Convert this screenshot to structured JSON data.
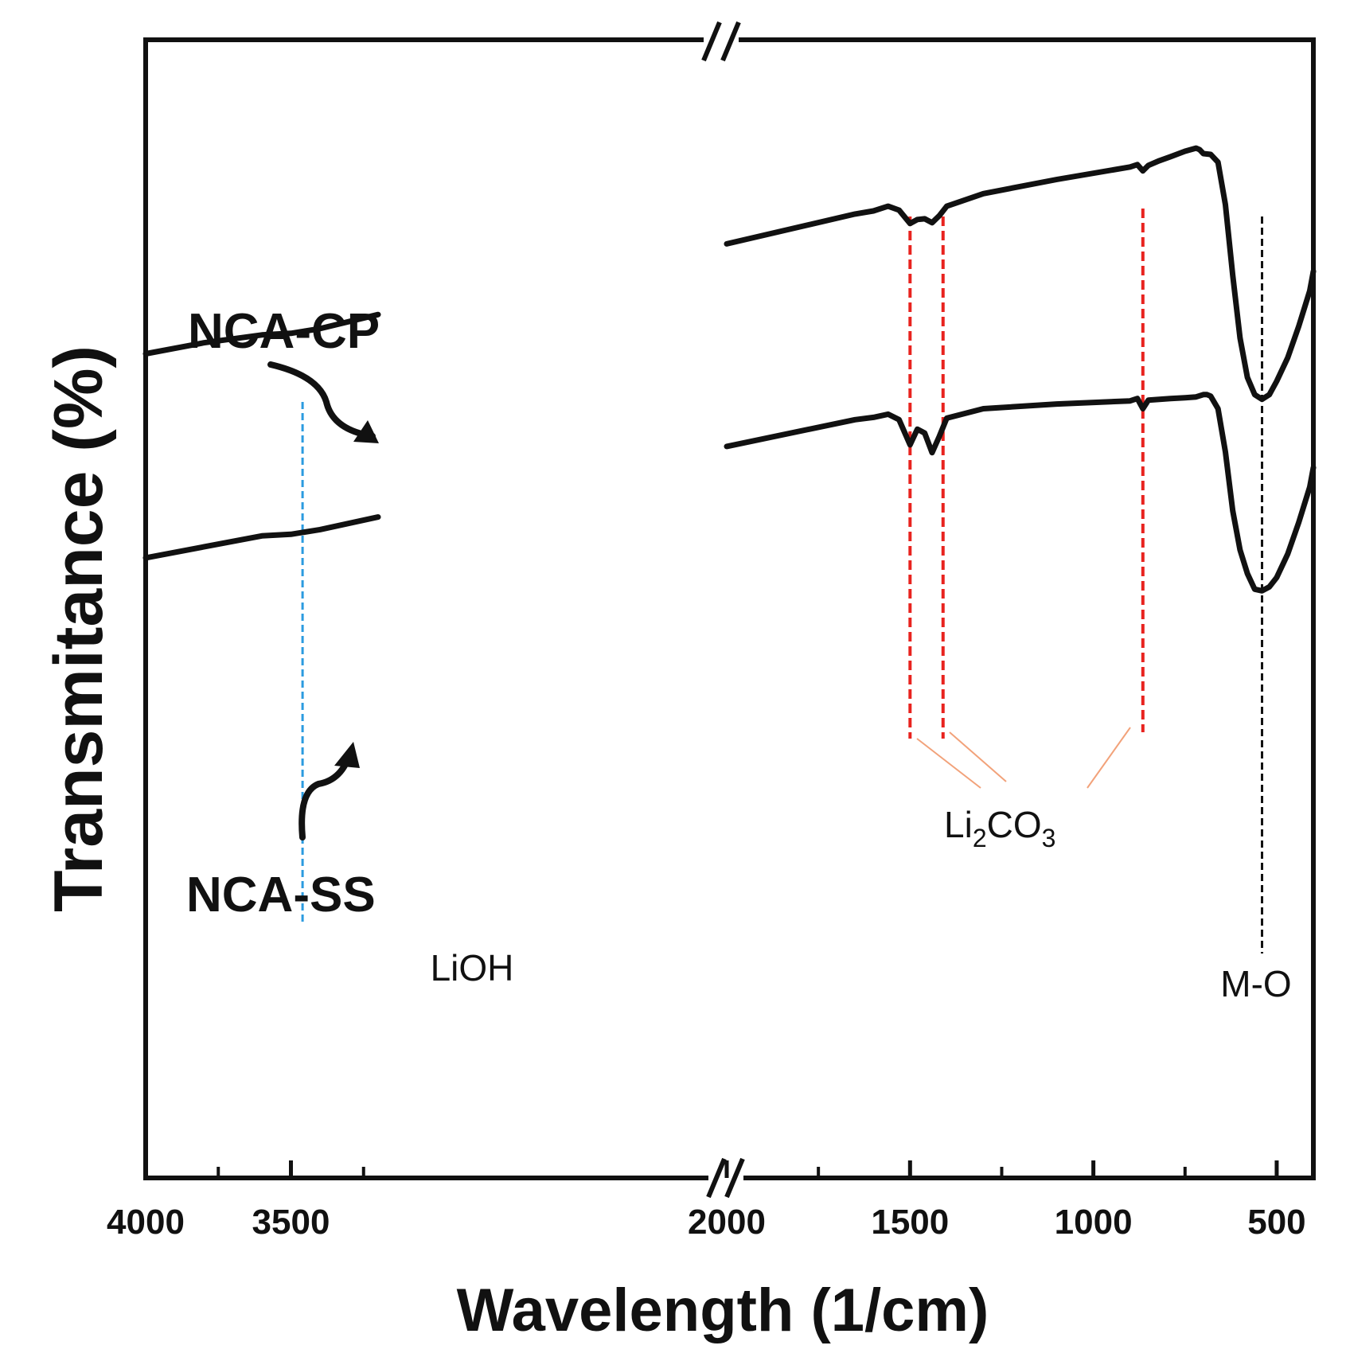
{
  "chart_data": {
    "type": "line",
    "title": "",
    "xlabel": "Wavelength (1/cm)",
    "ylabel": "Transmitance (%)",
    "x_axis": {
      "direction": "decreasing",
      "broken": true,
      "segments": [
        {
          "range": [
            4000,
            2000
          ],
          "visible_range": [
            4000,
            3200
          ],
          "ticks": [
            4000,
            3500
          ],
          "minor_ticks": [
            3750,
            3250
          ]
        },
        {
          "range": [
            2000,
            400
          ],
          "ticks": [
            2000,
            1500,
            1000,
            500
          ],
          "minor_ticks": [
            1750,
            1250,
            750
          ]
        }
      ]
    },
    "tick_labels": [
      "4000",
      "3500",
      "2000",
      "1500",
      "1000",
      "500"
    ],
    "series": [
      {
        "name": "NCA-CP",
        "offset": 1.0,
        "x": [
          4000,
          3800,
          3600,
          3500,
          3400,
          3200,
          2000,
          1650,
          1600,
          1560,
          1530,
          1500,
          1480,
          1460,
          1440,
          1420,
          1400,
          1300,
          1100,
          900,
          880,
          865,
          850,
          820,
          790,
          750,
          720,
          710,
          700,
          680,
          660,
          640,
          620,
          600,
          580,
          560,
          540,
          520,
          500,
          470,
          440,
          410,
          400
        ],
        "y": [
          70.0,
          71.4,
          72.4,
          72.6,
          73.2,
          75.0,
          84.0,
          87.8,
          88.2,
          88.8,
          88.3,
          86.6,
          87.1,
          87.2,
          86.7,
          87.6,
          88.8,
          90.4,
          92.2,
          93.8,
          94.1,
          93.3,
          94.0,
          94.6,
          95.1,
          95.8,
          96.2,
          96.0,
          95.5,
          95.4,
          94.4,
          89.0,
          80.0,
          72.0,
          67.0,
          64.8,
          64.2,
          64.8,
          66.5,
          69.5,
          73.5,
          78.0,
          80.5
        ]
      },
      {
        "name": "NCA-SS",
        "offset": 0.0,
        "x": [
          4000,
          3800,
          3600,
          3500,
          3400,
          3200,
          2000,
          1650,
          1600,
          1560,
          1530,
          1500,
          1480,
          1460,
          1440,
          1420,
          1400,
          1300,
          1100,
          900,
          880,
          865,
          850,
          820,
          790,
          750,
          720,
          700,
          690,
          680,
          660,
          640,
          620,
          600,
          580,
          560,
          540,
          520,
          500,
          470,
          440,
          410,
          400
        ],
        "y": [
          44.0,
          45.4,
          46.8,
          47.0,
          47.6,
          49.2,
          58.2,
          61.6,
          61.9,
          62.3,
          61.6,
          58.4,
          60.4,
          59.9,
          57.4,
          59.5,
          61.8,
          63.0,
          63.6,
          64.0,
          64.3,
          63.0,
          64.1,
          64.2,
          64.3,
          64.4,
          64.5,
          64.8,
          64.8,
          64.6,
          63.0,
          57.5,
          50.0,
          45.0,
          42.0,
          40.0,
          39.8,
          40.3,
          41.5,
          44.5,
          48.5,
          53.0,
          55.5
        ]
      }
    ],
    "reference_lines": [
      {
        "x": 3460,
        "label": "LiOH",
        "color": "#2b9be0"
      },
      {
        "x": 1500,
        "label": "Li2CO3",
        "color": "#e8231f"
      },
      {
        "x": 1410,
        "label": "Li2CO3",
        "color": "#e8231f"
      },
      {
        "x": 865,
        "label": "Li2CO3",
        "color": "#e8231f"
      },
      {
        "x": 540,
        "label": "M-O",
        "color": "#111111"
      }
    ],
    "annotations": [
      "NCA-CP",
      "NCA-SS",
      "LiOH",
      "Li",
      "2",
      "CO",
      "3",
      "M-O"
    ],
    "ylim": [
      -35,
      110
    ],
    "grid": false,
    "legend": "none"
  },
  "labels": {
    "xlabel": "Wavelength (1/cm)",
    "ylabel": "Transmitance (%)",
    "series_cp": "NCA-CP",
    "series_ss": "NCA-SS",
    "lioh": "LiOH",
    "li2co3_li": "Li",
    "li2co3_sub2": "2",
    "li2co3_co": "CO",
    "li2co3_sub3": "3",
    "mo": "M-O"
  },
  "colors": {
    "line": "#111111",
    "lioh_ref": "#2b9be0",
    "li2co3_ref": "#e8231f",
    "li2co3_leader": "#f2a27a",
    "mo_ref": "#111111"
  }
}
